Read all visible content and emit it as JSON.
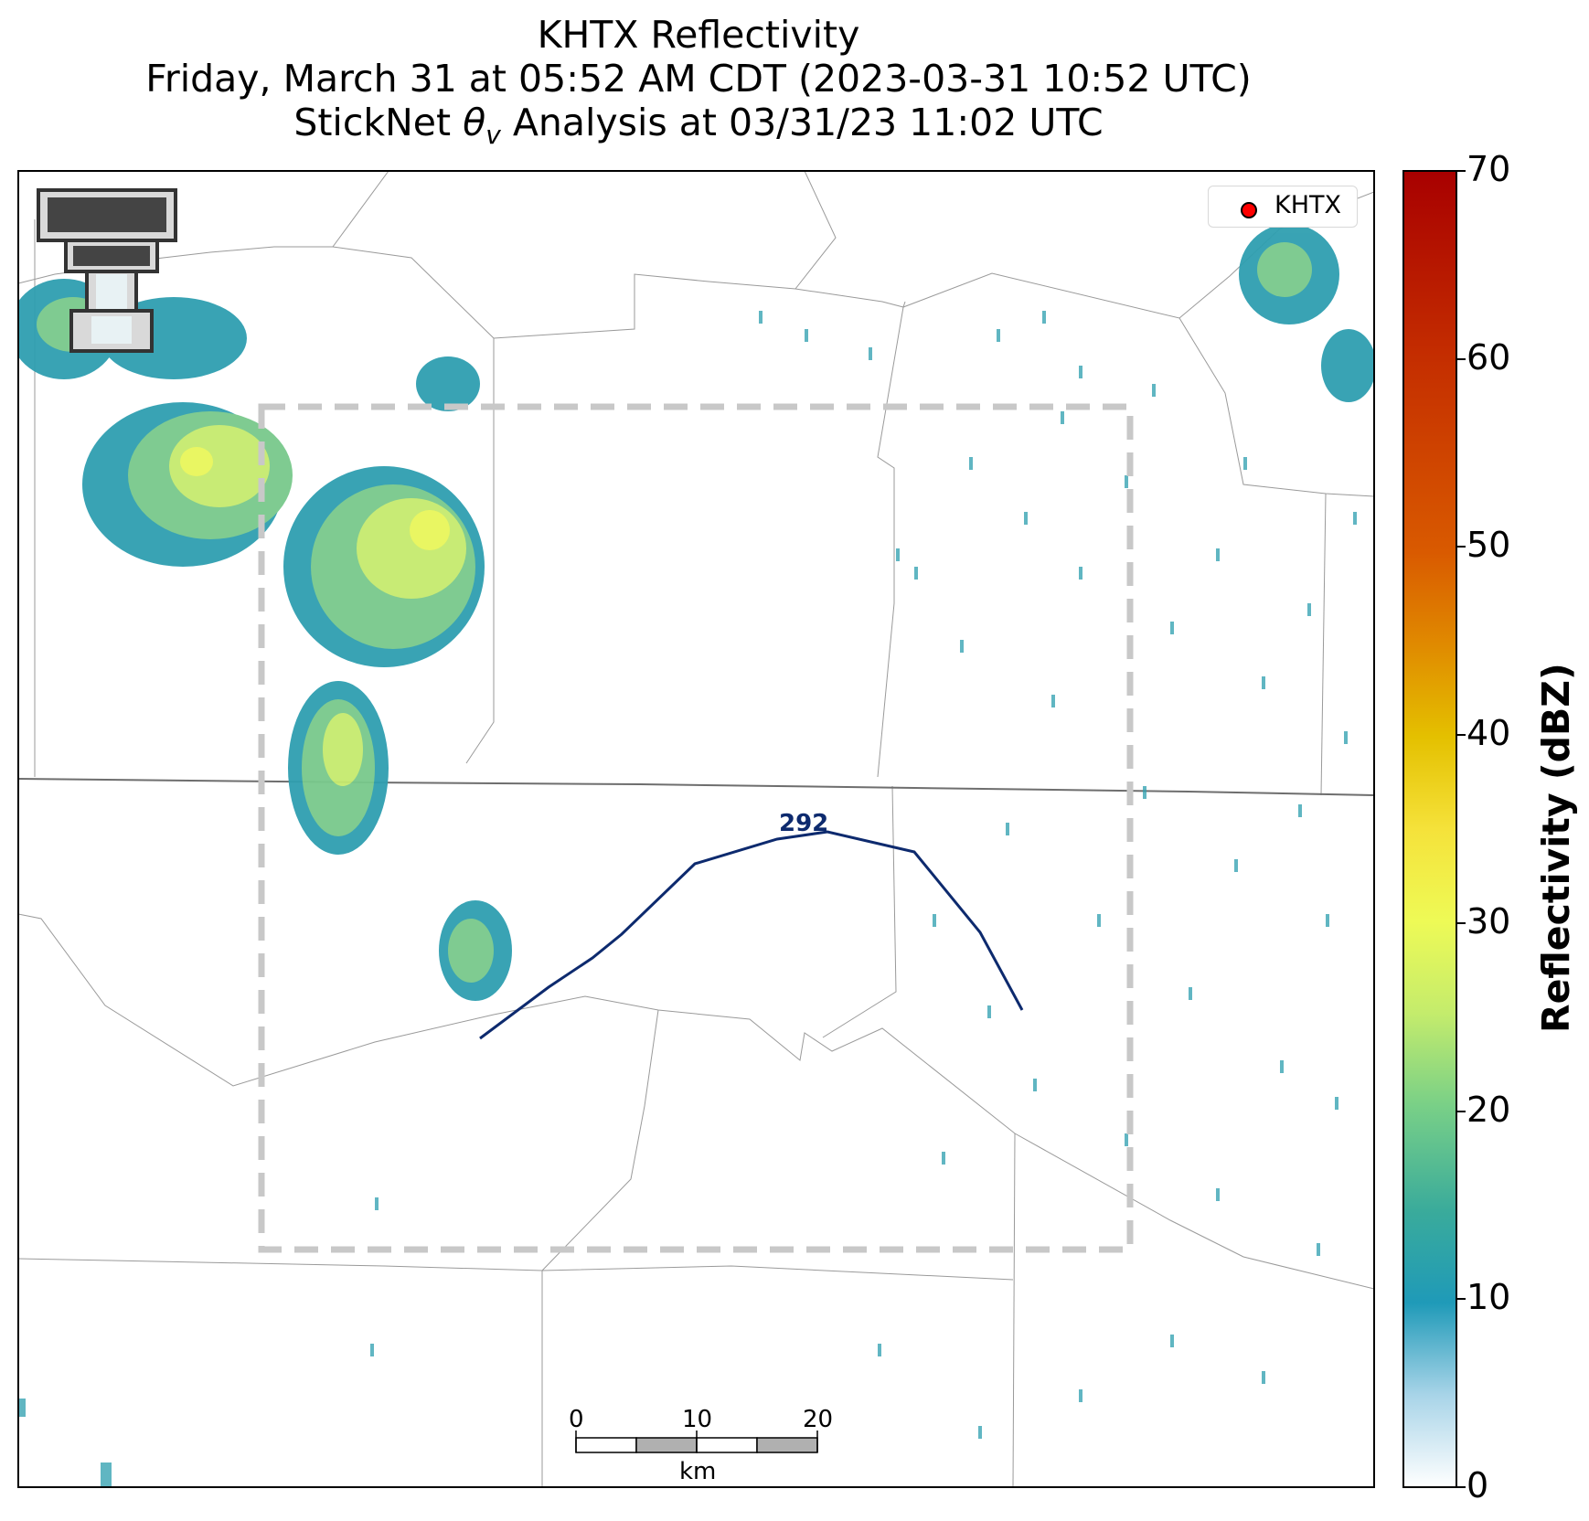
{
  "title": {
    "line1": "KHTX Reflectivity",
    "line2": "Friday, March 31 at 05:52 AM CDT (2023-03-31 10:52 UTC)",
    "line3_prefix": "StickNet ",
    "line3_theta": "θ",
    "line3_sub": "v",
    "line3_suffix": " Analysis at 03/31/23 11:02 UTC"
  },
  "legend": {
    "label": "KHTX",
    "marker_color": "#ff0000"
  },
  "colorbar": {
    "label": "Reflectivity (dBZ)",
    "min": 0,
    "max": 70,
    "ticks": [
      "0",
      "10",
      "20",
      "30",
      "40",
      "50",
      "60",
      "70"
    ],
    "colors": [
      "#ffffff",
      "#a8d4e8",
      "#1f9ab8",
      "#3aab9b",
      "#79d087",
      "#c4ec6c",
      "#eefa56",
      "#f5e23a",
      "#e4c000",
      "#e08a00",
      "#d95a00",
      "#c42d00",
      "#a80000"
    ]
  },
  "contour": {
    "label": "292",
    "color": "#0d2a6e"
  },
  "scalebar": {
    "ticks": [
      "0",
      "10",
      "20"
    ],
    "unit": "km"
  },
  "logo": {
    "icon": "texas-tech-double-t-logo"
  },
  "analysis_box": {
    "style": "dashed",
    "color": "#c8c8c8"
  }
}
